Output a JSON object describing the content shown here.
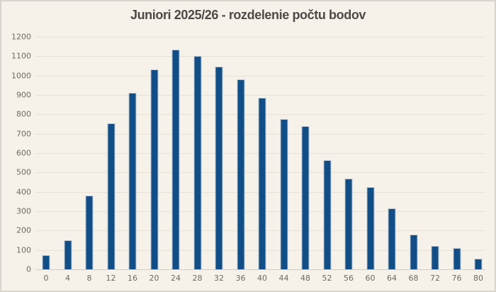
{
  "chart_data": {
    "type": "bar",
    "title": "Juniori 2025/26 - rozdelenie počtu bodov",
    "categories": [
      "0",
      "4",
      "8",
      "12",
      "16",
      "20",
      "24",
      "28",
      "32",
      "36",
      "40",
      "44",
      "48",
      "52",
      "56",
      "60",
      "64",
      "68",
      "72",
      "76",
      "80"
    ],
    "values": [
      75,
      150,
      380,
      755,
      910,
      1030,
      1135,
      1100,
      1045,
      980,
      885,
      775,
      740,
      565,
      470,
      425,
      315,
      180,
      120,
      110,
      55
    ],
    "xlabel": "",
    "ylabel": "",
    "ylim": [
      0,
      1200
    ],
    "ytick_step": 100,
    "yticks": [
      "0",
      "100",
      "200",
      "300",
      "400",
      "500",
      "600",
      "700",
      "800",
      "900",
      "1000",
      "1100",
      "1200"
    ],
    "grid": true,
    "legend": false
  },
  "colors": {
    "background": "#f7f2e9",
    "frame": "#d9d5cd",
    "bar_fill": "#114e87",
    "bar_edge": "#b6c5d7",
    "gridline": "#e7e1d6",
    "axis_line": "#d2ccc0",
    "title_text": "#4c4a46",
    "tick_text": "#6e6961"
  }
}
